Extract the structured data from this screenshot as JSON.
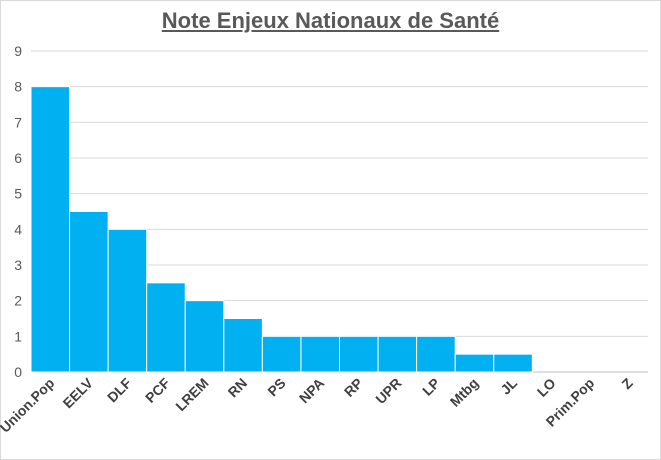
{
  "chart_data": {
    "type": "bar",
    "title": "Note Enjeux Nationaux de Santé",
    "xlabel": "",
    "ylabel": "",
    "categories": [
      "Union.Pop",
      "EELV",
      "DLF",
      "PCF",
      "LREM",
      "RN",
      "PS",
      "NPA",
      "RP",
      "UPR",
      "LP",
      "Mtbg",
      "JL",
      "LO",
      "Prim.Pop",
      "Z"
    ],
    "values": [
      8,
      4.5,
      4,
      2.5,
      2,
      1.5,
      1,
      1,
      1,
      1,
      1,
      0.5,
      0.5,
      0,
      0,
      0
    ],
    "ylim": [
      0,
      9
    ],
    "yticks": [
      "0",
      "1",
      "2",
      "3",
      "4",
      "5",
      "6",
      "7",
      "8",
      "9"
    ],
    "grid": true,
    "legend": "none",
    "bar_color": "#00B0F0",
    "bar_edge_color": "#ffffff"
  }
}
